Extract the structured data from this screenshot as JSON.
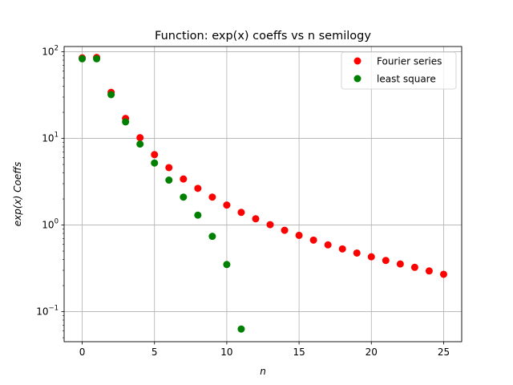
{
  "chart_data": {
    "type": "scatter",
    "title": "Function: exp(x) coeffs vs n semilogy",
    "xlabel": "n",
    "ylabel": "exp(x) Coeffs",
    "yscale": "log",
    "xlim": [
      -1.25,
      26.25
    ],
    "ylim": [
      0.045,
      115
    ],
    "grid": true,
    "legend_position": "top-right",
    "x_ticks": [
      {
        "value": 0,
        "label": "0"
      },
      {
        "value": 5,
        "label": "5"
      },
      {
        "value": 10,
        "label": "10"
      },
      {
        "value": 15,
        "label": "15"
      },
      {
        "value": 20,
        "label": "20"
      },
      {
        "value": 25,
        "label": "25"
      }
    ],
    "y_ticks": [
      {
        "value": 0.1,
        "base": "10",
        "exp": "−1"
      },
      {
        "value": 1,
        "base": "10",
        "exp": "0"
      },
      {
        "value": 10,
        "base": "10",
        "exp": "1"
      },
      {
        "value": 100,
        "base": "10",
        "exp": "2"
      }
    ],
    "series": [
      {
        "name": "Fourier series",
        "color": "#ff0000",
        "x": [
          0,
          1,
          2,
          3,
          4,
          5,
          6,
          7,
          8,
          9,
          10,
          11,
          12,
          13,
          14,
          15,
          16,
          17,
          18,
          19,
          20,
          21,
          22,
          23,
          24,
          25
        ],
        "y": [
          85,
          86,
          34,
          17,
          10.2,
          6.5,
          4.6,
          3.4,
          2.65,
          2.1,
          1.7,
          1.4,
          1.18,
          1.01,
          0.87,
          0.76,
          0.67,
          0.59,
          0.53,
          0.475,
          0.43,
          0.39,
          0.355,
          0.325,
          0.295,
          0.27
        ]
      },
      {
        "name": "least square",
        "color": "#008000",
        "x": [
          0,
          1,
          2,
          3,
          4,
          5,
          6,
          7,
          8,
          9,
          10,
          11
        ],
        "y": [
          83,
          83,
          32,
          15.5,
          8.6,
          5.2,
          3.3,
          2.1,
          1.3,
          0.74,
          0.35,
          0.063
        ]
      }
    ]
  }
}
